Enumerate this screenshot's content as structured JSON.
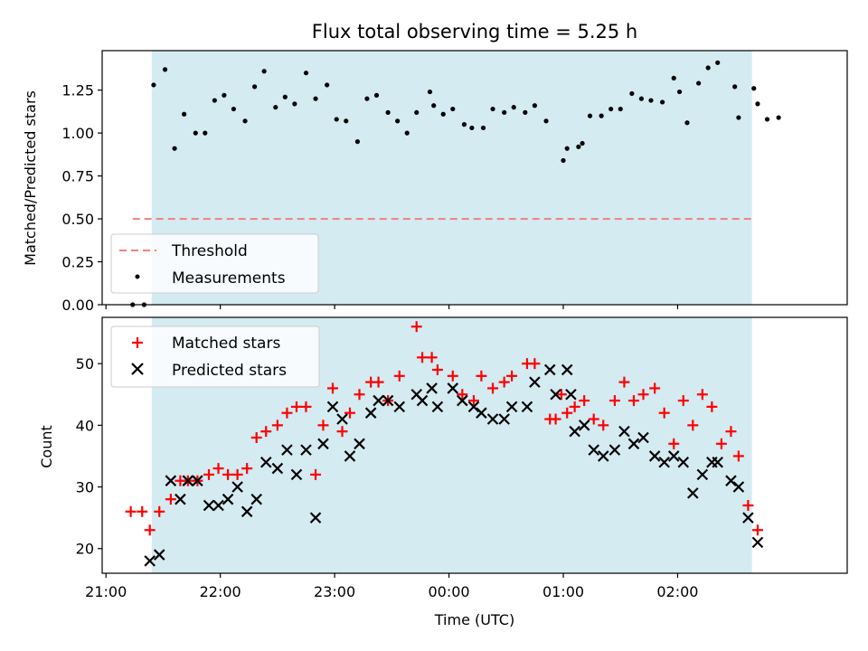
{
  "chart_data": [
    {
      "type": "scatter",
      "title": "Flux total observing time = 5.25 h",
      "xlabel": "",
      "ylabel": "Matched/Predicted stars",
      "ylim": [
        0,
        1.48
      ],
      "yticks": [
        "0.00",
        "0.25",
        "0.50",
        "0.75",
        "1.00",
        "1.25"
      ],
      "ytick_values": [
        0,
        0.25,
        0.5,
        0.75,
        1.0,
        1.25
      ],
      "shaded_span": {
        "start": "21:24",
        "end": "02:39",
        "color": "#d4ebf2"
      },
      "threshold": {
        "name": "Threshold",
        "value": 0.5,
        "x_start": "21:14",
        "x_end": "02:39",
        "color": "#f08080"
      },
      "legend": {
        "placement": "lower-left",
        "entries": [
          "Threshold",
          "Measurements"
        ]
      },
      "series": [
        {
          "name": "Measurements",
          "color": "#000000",
          "points": [
            [
              "21:14",
              0.0
            ],
            [
              "21:20",
              0.0
            ],
            [
              "21:25",
              1.28
            ],
            [
              "21:31",
              1.37
            ],
            [
              "21:36",
              0.91
            ],
            [
              "21:41",
              1.11
            ],
            [
              "21:47",
              1.0
            ],
            [
              "21:52",
              1.0
            ],
            [
              "21:57",
              1.19
            ],
            [
              "22:02",
              1.22
            ],
            [
              "22:07",
              1.14
            ],
            [
              "22:13",
              1.07
            ],
            [
              "22:18",
              1.27
            ],
            [
              "22:23",
              1.36
            ],
            [
              "22:29",
              1.15
            ],
            [
              "22:34",
              1.21
            ],
            [
              "22:39",
              1.17
            ],
            [
              "22:45",
              1.35
            ],
            [
              "22:50",
              1.2
            ],
            [
              "22:56",
              1.28
            ],
            [
              "23:01",
              1.08
            ],
            [
              "23:06",
              1.07
            ],
            [
              "23:12",
              0.95
            ],
            [
              "23:17",
              1.2
            ],
            [
              "23:22",
              1.22
            ],
            [
              "23:28",
              1.12
            ],
            [
              "23:33",
              1.07
            ],
            [
              "23:38",
              1.0
            ],
            [
              "23:43",
              1.12
            ],
            [
              "23:50",
              1.24
            ],
            [
              "23:52",
              1.16
            ],
            [
              "23:57",
              1.11
            ],
            [
              "00:02",
              1.14
            ],
            [
              "00:08",
              1.05
            ],
            [
              "00:12",
              1.03
            ],
            [
              "00:18",
              1.03
            ],
            [
              "00:23",
              1.14
            ],
            [
              "00:29",
              1.12
            ],
            [
              "00:34",
              1.15
            ],
            [
              "00:40",
              1.12
            ],
            [
              "00:45",
              1.16
            ],
            [
              "00:51",
              1.07
            ],
            [
              "01:00",
              0.84
            ],
            [
              "01:02",
              0.91
            ],
            [
              "01:08",
              0.92
            ],
            [
              "01:10",
              0.94
            ],
            [
              "01:14",
              1.1
            ],
            [
              "01:20",
              1.1
            ],
            [
              "01:25",
              1.14
            ],
            [
              "01:30",
              1.14
            ],
            [
              "01:36",
              1.23
            ],
            [
              "01:41",
              1.2
            ],
            [
              "01:46",
              1.19
            ],
            [
              "01:52",
              1.18
            ],
            [
              "01:58",
              1.32
            ],
            [
              "02:01",
              1.24
            ],
            [
              "02:05",
              1.06
            ],
            [
              "02:11",
              1.29
            ],
            [
              "02:16",
              1.38
            ],
            [
              "02:21",
              1.41
            ],
            [
              "02:30",
              1.27
            ],
            [
              "02:32",
              1.09
            ],
            [
              "02:40",
              1.26
            ],
            [
              "02:42",
              1.17
            ],
            [
              "02:47",
              1.08
            ],
            [
              "02:53",
              1.09
            ]
          ]
        }
      ]
    },
    {
      "type": "scatter",
      "title": "",
      "xlabel": "Time (UTC)",
      "ylabel": "Count",
      "ylim": [
        16,
        57.5
      ],
      "yticks": [
        "20",
        "30",
        "40",
        "50"
      ],
      "ytick_values": [
        20,
        30,
        40,
        50
      ],
      "xticks": [
        "21:00",
        "22:00",
        "23:00",
        "00:00",
        "01:00",
        "02:00"
      ],
      "legend": {
        "placement": "upper-left",
        "entries": [
          "Matched stars",
          "Predicted stars"
        ]
      },
      "series": [
        {
          "name": "Matched stars",
          "marker": "+",
          "color": "#ff0000",
          "points": [
            [
              "21:13",
              26
            ],
            [
              "21:19",
              26
            ],
            [
              "21:23",
              23
            ],
            [
              "21:28",
              26
            ],
            [
              "21:34",
              28
            ],
            [
              "21:39",
              31
            ],
            [
              "21:43",
              31
            ],
            [
              "21:48",
              31
            ],
            [
              "21:54",
              32
            ],
            [
              "21:59",
              33
            ],
            [
              "22:04",
              32
            ],
            [
              "22:09",
              32
            ],
            [
              "22:14",
              33
            ],
            [
              "22:19",
              38
            ],
            [
              "22:24",
              39
            ],
            [
              "22:30",
              40
            ],
            [
              "22:35",
              42
            ],
            [
              "22:40",
              43
            ],
            [
              "22:45",
              43
            ],
            [
              "22:50",
              32
            ],
            [
              "22:54",
              40
            ],
            [
              "22:59",
              46
            ],
            [
              "23:04",
              39
            ],
            [
              "23:08",
              42
            ],
            [
              "23:13",
              45
            ],
            [
              "23:19",
              47
            ],
            [
              "23:23",
              47
            ],
            [
              "23:28",
              44
            ],
            [
              "23:34",
              48
            ],
            [
              "23:43",
              56
            ],
            [
              "23:46",
              51
            ],
            [
              "23:51",
              51
            ],
            [
              "23:54",
              49
            ],
            [
              "00:02",
              48
            ],
            [
              "00:07",
              45
            ],
            [
              "00:13",
              44
            ],
            [
              "00:17",
              48
            ],
            [
              "00:23",
              46
            ],
            [
              "00:29",
              47
            ],
            [
              "00:33",
              48
            ],
            [
              "00:41",
              50
            ],
            [
              "00:45",
              50
            ],
            [
              "00:53",
              41
            ],
            [
              "00:56",
              41
            ],
            [
              "00:59",
              45
            ],
            [
              "01:02",
              42
            ],
            [
              "01:06",
              43
            ],
            [
              "01:11",
              44
            ],
            [
              "01:16",
              41
            ],
            [
              "01:21",
              40
            ],
            [
              "01:27",
              44
            ],
            [
              "01:32",
              47
            ],
            [
              "01:37",
              44
            ],
            [
              "01:42",
              45
            ],
            [
              "01:48",
              46
            ],
            [
              "01:53",
              42
            ],
            [
              "01:58",
              37
            ],
            [
              "02:03",
              44
            ],
            [
              "02:08",
              40
            ],
            [
              "02:13",
              45
            ],
            [
              "02:18",
              43
            ],
            [
              "02:23",
              37
            ],
            [
              "02:28",
              39
            ],
            [
              "02:32",
              35
            ],
            [
              "02:37",
              27
            ],
            [
              "02:42",
              23
            ]
          ]
        },
        {
          "name": "Predicted stars",
          "marker": "x",
          "color": "#000000",
          "points": [
            [
              "21:23",
              18
            ],
            [
              "21:28",
              19
            ],
            [
              "21:34",
              31
            ],
            [
              "21:39",
              28
            ],
            [
              "21:43",
              31
            ],
            [
              "21:48",
              31
            ],
            [
              "21:54",
              27
            ],
            [
              "21:59",
              27
            ],
            [
              "22:04",
              28
            ],
            [
              "22:09",
              30
            ],
            [
              "22:14",
              26
            ],
            [
              "22:19",
              28
            ],
            [
              "22:24",
              34
            ],
            [
              "22:30",
              33
            ],
            [
              "22:35",
              36
            ],
            [
              "22:40",
              32
            ],
            [
              "22:45",
              36
            ],
            [
              "22:50",
              25
            ],
            [
              "22:54",
              37
            ],
            [
              "22:59",
              43
            ],
            [
              "23:04",
              41
            ],
            [
              "23:08",
              35
            ],
            [
              "23:13",
              37
            ],
            [
              "23:19",
              42
            ],
            [
              "23:23",
              44
            ],
            [
              "23:28",
              44
            ],
            [
              "23:34",
              43
            ],
            [
              "23:43",
              45
            ],
            [
              "23:46",
              44
            ],
            [
              "23:51",
              46
            ],
            [
              "23:54",
              43
            ],
            [
              "00:02",
              46
            ],
            [
              "00:07",
              44
            ],
            [
              "00:13",
              43
            ],
            [
              "00:17",
              42
            ],
            [
              "00:23",
              41
            ],
            [
              "00:29",
              41
            ],
            [
              "00:33",
              43
            ],
            [
              "00:41",
              43
            ],
            [
              "00:45",
              47
            ],
            [
              "00:53",
              49
            ],
            [
              "00:56",
              45
            ],
            [
              "01:02",
              49
            ],
            [
              "01:04",
              45
            ],
            [
              "01:06",
              39
            ],
            [
              "01:11",
              40
            ],
            [
              "01:16",
              36
            ],
            [
              "01:21",
              35
            ],
            [
              "01:27",
              36
            ],
            [
              "01:32",
              39
            ],
            [
              "01:37",
              37
            ],
            [
              "01:42",
              38
            ],
            [
              "01:48",
              35
            ],
            [
              "01:53",
              34
            ],
            [
              "01:58",
              35
            ],
            [
              "02:03",
              34
            ],
            [
              "02:08",
              29
            ],
            [
              "02:13",
              32
            ],
            [
              "02:18",
              34
            ],
            [
              "02:21",
              34
            ],
            [
              "02:28",
              31
            ],
            [
              "02:32",
              30
            ],
            [
              "02:37",
              25
            ],
            [
              "02:42",
              21
            ]
          ]
        }
      ]
    }
  ]
}
